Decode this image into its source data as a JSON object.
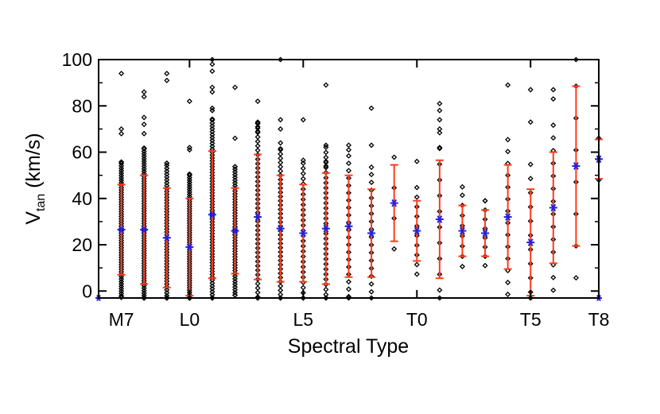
{
  "chart_data": {
    "type": "scatter",
    "title": "",
    "xlabel": "Spectral Type",
    "ylabel": "V",
    "ylabel_subscript": "tan",
    "ylabel_unit": "(km/s)",
    "xlim": [
      6,
      28
    ],
    "ylim": [
      -3,
      100
    ],
    "y_ticks": [
      0,
      20,
      40,
      60,
      80,
      100
    ],
    "y_tick_labels": [
      "0",
      "20",
      "40",
      "60",
      "80",
      "100"
    ],
    "x_ticks": [
      7,
      10,
      15,
      20,
      25,
      28
    ],
    "x_tick_labels": [
      "M7",
      "L0",
      "L5",
      "T0",
      "T5",
      "T8"
    ],
    "grid": false,
    "colors": {
      "points": "#000000",
      "error_bars": "#ff3b1a",
      "means": "#2222dd",
      "axes": "#000000"
    },
    "means": {
      "x": [
        7,
        8,
        9,
        10,
        11,
        12,
        13,
        14,
        15,
        16,
        17,
        18,
        19,
        20,
        21,
        22,
        23,
        24,
        25,
        26,
        27,
        28
      ],
      "y": [
        26.5,
        26.5,
        23,
        19,
        33,
        26,
        32,
        27,
        25,
        27,
        28,
        25,
        38,
        26,
        31,
        26,
        25,
        32,
        21,
        36,
        54,
        57
      ],
      "sd": [
        19.5,
        23.5,
        21.5,
        21,
        27.5,
        18.5,
        27,
        23,
        21,
        24,
        22,
        19,
        16.5,
        13,
        25.5,
        11,
        10,
        22.5,
        23,
        24,
        34.5,
        8.5
      ]
    },
    "edge_markers": {
      "x": [
        6,
        28
      ],
      "y": [
        -3,
        -3
      ]
    },
    "samples": {
      "x": [
        7,
        8,
        9,
        10,
        11,
        12,
        13,
        14,
        15,
        16,
        17,
        18,
        19,
        20,
        21,
        22,
        23,
        24,
        25,
        26,
        27,
        28
      ],
      "n": [
        60,
        70,
        55,
        65,
        70,
        50,
        45,
        40,
        30,
        35,
        22,
        18,
        4,
        10,
        12,
        8,
        8,
        14,
        12,
        14,
        8,
        3
      ],
      "outliers": [
        [
          94,
          70,
          68
        ],
        [
          86,
          84,
          75,
          72,
          68
        ],
        [
          94,
          91
        ],
        [
          82,
          62,
          61
        ],
        [
          100,
          98,
          95,
          88,
          86,
          79,
          78
        ],
        [
          88,
          66
        ],
        [
          82,
          73,
          71,
          69
        ],
        [
          100,
          74,
          70,
          64
        ],
        [
          74
        ],
        [
          89,
          56,
          54
        ],
        [
          63
        ],
        [
          79,
          63
        ],
        [],
        [
          56
        ],
        [
          81,
          78,
          74,
          70,
          62
        ],
        [
          45
        ],
        [
          39
        ],
        [
          89
        ],
        [
          87,
          73
        ],
        [
          87,
          83
        ],
        [],
        []
      ]
    }
  }
}
